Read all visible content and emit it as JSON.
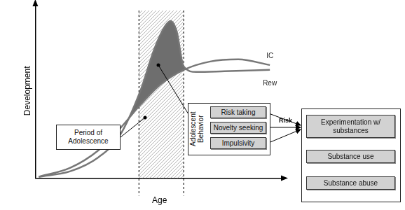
{
  "chart_data": {
    "type": "line",
    "x_label": "Age",
    "y_label": "Development",
    "xlim": [
      0,
      100
    ],
    "ylim": [
      0,
      100
    ],
    "tick_labels": false,
    "grid": false,
    "series": [
      {
        "name": "IC",
        "color": "#777777",
        "x": [
          1.4,
          14.1,
          25.4,
          33.8,
          42.3,
          50.7,
          59.7,
          70.4,
          81.7,
          94.4
        ],
        "values": [
          0.8,
          6,
          16,
          28,
          42,
          54,
          62,
          66.8,
          68,
          64.8
        ]
      },
      {
        "name": "Rew",
        "color": "#777777",
        "x": [
          1.4,
          14.1,
          25.4,
          33.8,
          42.3,
          47.9,
          52.1,
          54.4,
          56.9,
          59.7,
          64.8,
          76.1,
          94.4
        ],
        "values": [
          0.8,
          4,
          12,
          24,
          50,
          74,
          86.8,
          90,
          84,
          64,
          60.8,
          61.2,
          62
        ]
      }
    ],
    "annotations": [
      {
        "text": "Period of Adolescence",
        "x": [
          41.7,
          59.7
        ]
      }
    ]
  },
  "diagram": {
    "behavior": {
      "title": "Adolescent Behavior",
      "items": [
        "Risk taking",
        "Novelty seeking",
        "Impulsivity"
      ]
    },
    "arrow_label": "Risk",
    "outcomes": [
      "Experimentation w/ substances",
      "Substance use",
      "Substance abuse"
    ]
  }
}
